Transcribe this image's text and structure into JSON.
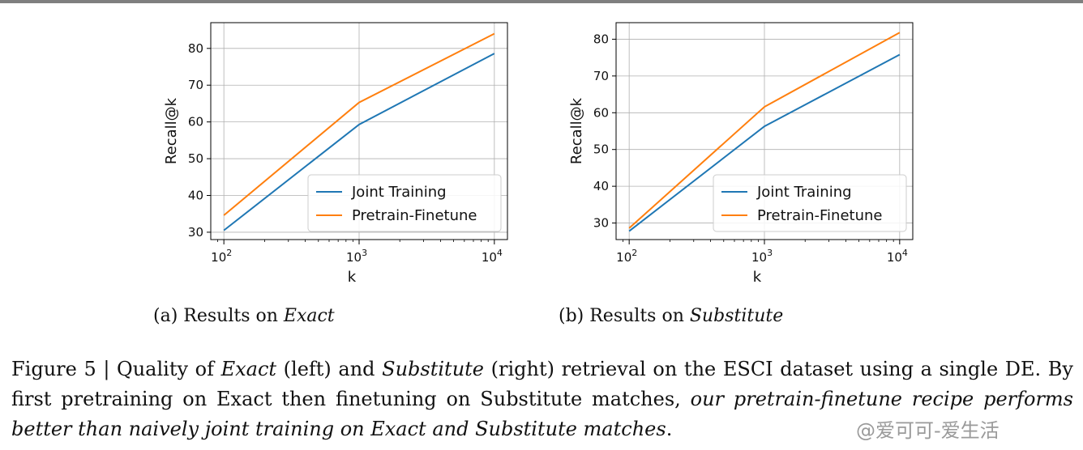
{
  "chart_data": [
    {
      "type": "line",
      "x": [
        100,
        1000,
        10000
      ],
      "xscale": "log",
      "xlim": [
        80,
        12500
      ],
      "ylim": [
        28,
        87
      ],
      "xticks": [
        "10",
        "10",
        "10"
      ],
      "xtick_exponents": [
        "2",
        "3",
        "4"
      ],
      "yticks": [
        30,
        40,
        50,
        60,
        70,
        80
      ],
      "xlabel": "k",
      "ylabel": "Recall@k",
      "grid": true,
      "legend_position": "lower-right",
      "series": [
        {
          "name": "Joint Training",
          "values": [
            30.5,
            59.3,
            78.6
          ],
          "color": "#1f77b4"
        },
        {
          "name": "Pretrain-Finetune",
          "values": [
            34.6,
            65.3,
            84.0
          ],
          "color": "#ff7f0e"
        }
      ],
      "caption_prefix": "(a) Results on ",
      "caption_dataset": "Exact"
    },
    {
      "type": "line",
      "x": [
        100,
        1000,
        10000
      ],
      "xscale": "log",
      "xlim": [
        80,
        12500
      ],
      "ylim": [
        25.5,
        84.5
      ],
      "xticks": [
        "10",
        "10",
        "10"
      ],
      "xtick_exponents": [
        "2",
        "3",
        "4"
      ],
      "yticks": [
        30,
        40,
        50,
        60,
        70,
        80
      ],
      "xlabel": "k",
      "ylabel": "Recall@k",
      "grid": true,
      "legend_position": "lower-right",
      "series": [
        {
          "name": "Joint Training",
          "values": [
            27.8,
            56.3,
            75.8
          ],
          "color": "#1f77b4"
        },
        {
          "name": "Pretrain-Finetune",
          "values": [
            28.6,
            61.6,
            81.8
          ],
          "color": "#ff7f0e"
        }
      ],
      "caption_prefix": "(b) Results on ",
      "caption_dataset": "Substitute"
    }
  ],
  "figure_caption": {
    "p1": "Figure 5 | Quality of ",
    "e1": "Exact",
    "p2": " (left) and ",
    "e2": "Substitute",
    "p3": " (right) retrieval on the ESCI dataset using a single DE. By first pretraining on Exact then finetuning on Substitute matches, ",
    "e3": "our pretrain-finetune recipe performs better than naively joint training on Exact and Substitute matches",
    "p4": "."
  },
  "watermark": "@爱可可-爱生活"
}
